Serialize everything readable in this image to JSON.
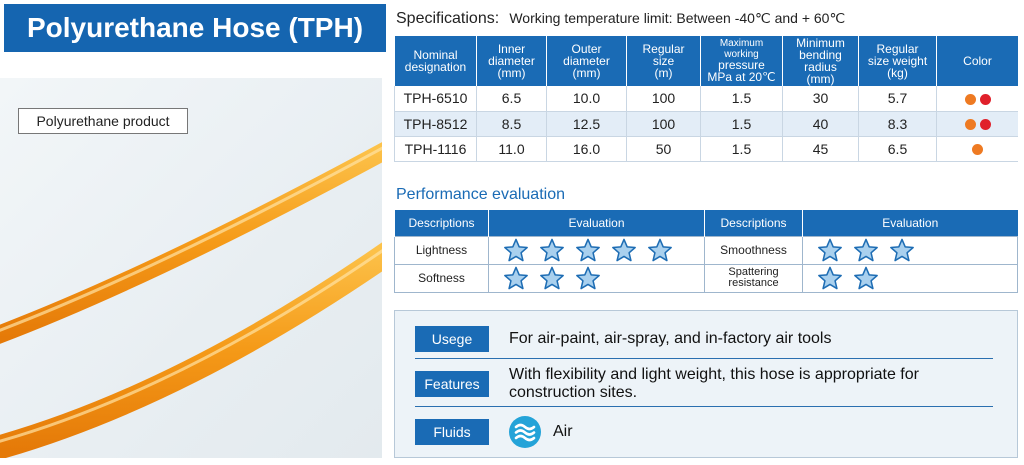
{
  "title": "Polyurethane Hose (TPH)",
  "photo_label": "Polyurethane product",
  "specifications": {
    "heading": "Specifications:",
    "temperature": "Working temperature limit: Between -40℃ and + 60℃",
    "headers": [
      [
        "Nominal",
        "designation"
      ],
      [
        "Inner",
        "diameter",
        "(mm)"
      ],
      [
        "Outer",
        "diameter",
        "(mm)"
      ],
      [
        "Regular",
        "size",
        "(m)"
      ],
      [
        "Maximum working",
        "pressure",
        "MPa at 20℃"
      ],
      [
        "Minimum",
        "bending radius",
        "(mm)"
      ],
      [
        "Regular",
        "size weight",
        "(kg)"
      ],
      [
        "Color"
      ]
    ],
    "rows": [
      {
        "name": "TPH-6510",
        "inner": "6.5",
        "outer": "10.0",
        "size": "100",
        "pressure": "1.5",
        "radius": "30",
        "weight": "5.7",
        "colors": [
          "#ee7a22",
          "#e0202a"
        ]
      },
      {
        "name": "TPH-8512",
        "inner": "8.5",
        "outer": "12.5",
        "size": "100",
        "pressure": "1.5",
        "radius": "40",
        "weight": "8.3",
        "colors": [
          "#ee7a22",
          "#e0202a"
        ]
      },
      {
        "name": "TPH-1116",
        "inner": "11.0",
        "outer": "16.0",
        "size": "50",
        "pressure": "1.5",
        "radius": "45",
        "weight": "6.5",
        "colors": [
          "#ee7a22"
        ]
      }
    ]
  },
  "performance": {
    "title": "Performance evaluation",
    "headers": [
      "Descriptions",
      "Evaluation",
      "Descriptions",
      "Evaluation"
    ],
    "rows": [
      {
        "left_label": "Lightness",
        "left_stars": 5,
        "right_label": "Smoothness",
        "right_stars": 3
      },
      {
        "left_label": "Softness",
        "left_stars": 3,
        "right_label": "Spattering resistance",
        "right_label_lines": [
          "Spattering",
          "resistance"
        ],
        "right_stars": 2
      }
    ]
  },
  "info": {
    "usage_label": "Usege",
    "usage_text": "For air-paint, air-spray, and in-factory air tools",
    "features_label": "Features",
    "features_text": "With flexibility and light weight, this hose is appropriate for construction sites.",
    "fluids_label": "Fluids",
    "fluids_icon": "air-icon",
    "fluids_text": "Air"
  },
  "colors": {
    "accent": "#1a6bb5",
    "hose_orange": "#f59a18",
    "star_fill": "#a9d0ee",
    "star_stroke": "#1e6db4"
  }
}
